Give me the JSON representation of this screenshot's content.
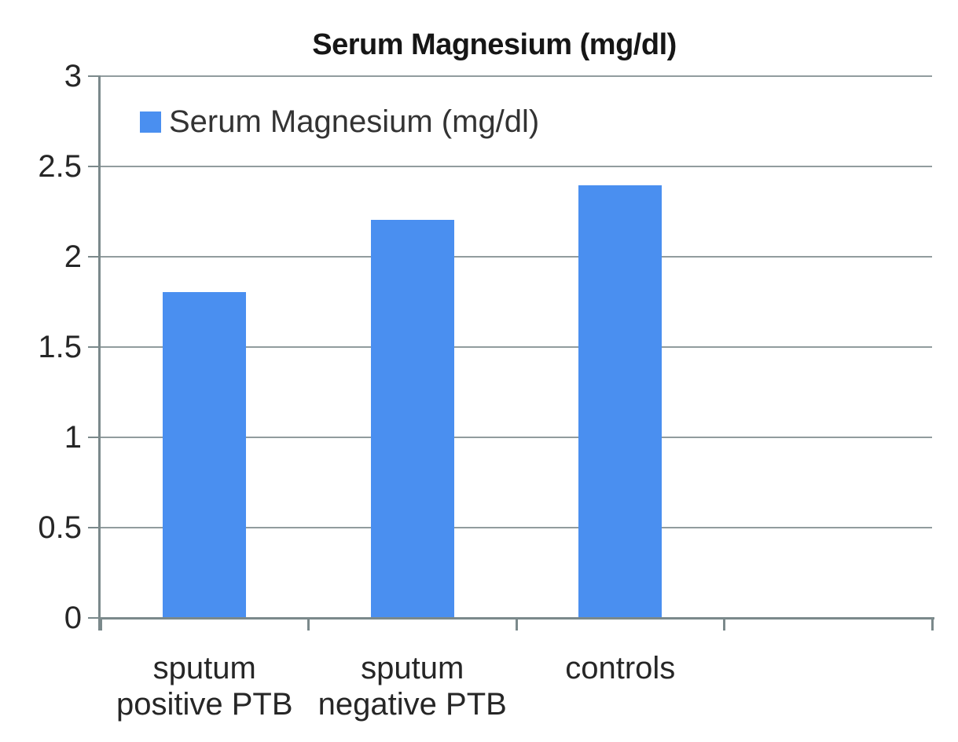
{
  "title": "Serum Magnesium (mg/dl)",
  "legend": {
    "label": "Serum Magnesium (mg/dl)",
    "swatch_icon": "legend-color-swatch",
    "position": "top-left-inside"
  },
  "colors": {
    "bar": "#4a8ff0",
    "axis": "#7b898b",
    "gridline": "#919c9e",
    "text": "#262626",
    "title_text": "#161616",
    "background": "#ffffff"
  },
  "chart_data": {
    "type": "bar",
    "title": "Serum Magnesium (mg/dl)",
    "series": [
      {
        "name": "Serum Magnesium (mg/dl)",
        "values": [
          1.8,
          2.2,
          2.39
        ]
      }
    ],
    "categories": [
      "sputum positive PTB",
      "sputum negative PTB",
      "controls"
    ],
    "category_label_lines": [
      [
        "sputum",
        "positive PTB"
      ],
      [
        "sputum",
        "negative PTB"
      ],
      [
        "controls"
      ]
    ],
    "xlabel": "",
    "ylabel": "",
    "ylim": [
      0,
      3
    ],
    "yticks": [
      0,
      0.5,
      1,
      1.5,
      2,
      2.5,
      3
    ],
    "ytick_labels": [
      "0",
      "0.5",
      "1",
      "1.5",
      "2",
      "2.5",
      "3"
    ],
    "x_slots": 4,
    "grid": "horizontal",
    "legend_position": "top-left-inside"
  }
}
